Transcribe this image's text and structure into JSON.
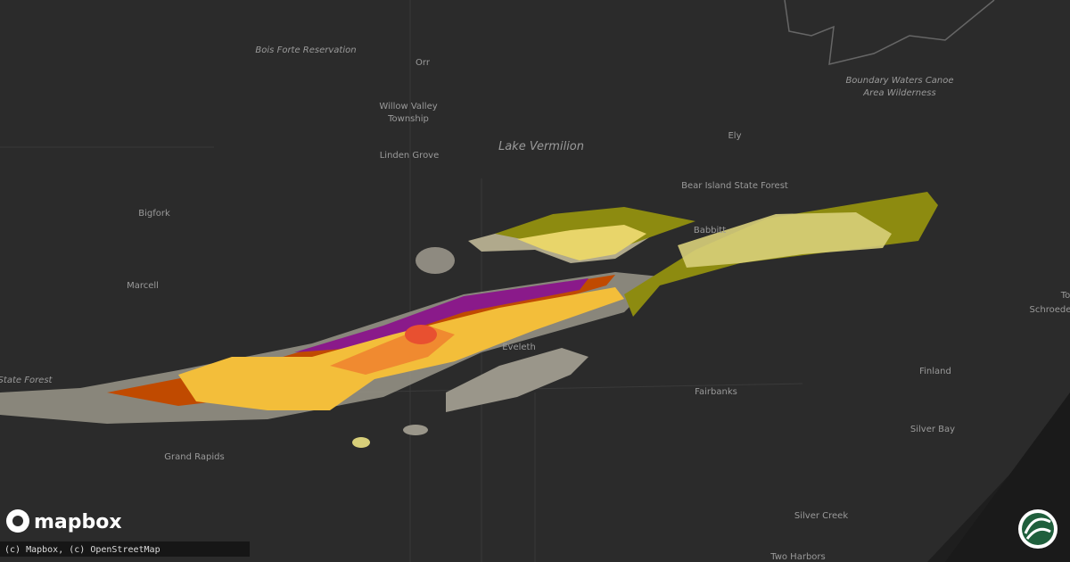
{
  "map": {
    "places": {
      "bois_forte": "Bois Forte Reservation",
      "orr": "Orr",
      "willow_valley": [
        "Willow Valley",
        "Township"
      ],
      "linden_grove": "Linden Grove",
      "lake_vermilion": "Lake Vermilion",
      "ely": "Ely",
      "bear_island": "Bear Island State Forest",
      "boundary_waters": [
        "Boundary Waters Canoe",
        "Area Wilderness"
      ],
      "babbitt": "Babbitt",
      "bigfork": "Bigfork",
      "marcell": "Marcell",
      "state_forest": "State Forest",
      "eveleth": "Eveleth",
      "fairbanks": "Fairbanks",
      "finland": "Finland",
      "silver_bay": "Silver Bay",
      "grand_rapids": "Grand Rapids",
      "silver_creek": "Silver Creek",
      "two_harbors": "Two Harbors",
      "schroeder": "Schroeder",
      "to": "To"
    },
    "logo": "mapbox",
    "attribution": "(c) Mapbox, (c) OpenStreetMap"
  }
}
